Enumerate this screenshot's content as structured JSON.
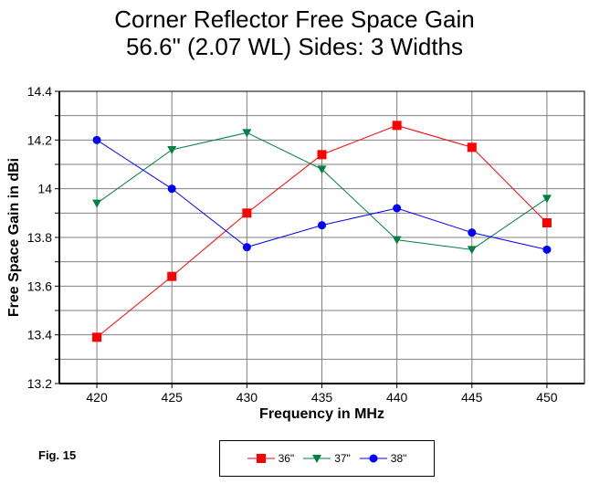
{
  "chart_data": {
    "type": "line",
    "title": "Corner Reflector Free Space Gain",
    "subtitle": "56.6\" (2.07 WL) Sides:  3 Widths",
    "xlabel": "Frequency in MHz",
    "ylabel": "Free Space Gain in dBi",
    "x": [
      420,
      425,
      430,
      435,
      440,
      445,
      450
    ],
    "xlim": [
      417.5,
      452.5
    ],
    "ylim": [
      13.2,
      14.4
    ],
    "yticks": [
      13.2,
      13.4,
      13.6,
      13.8,
      14,
      14.2,
      14.4
    ],
    "ytick_labels": [
      "13.2",
      "13.4",
      "13.6",
      "13.8",
      "14",
      "14.2",
      "14.4"
    ],
    "xtick_labels": [
      "420",
      "425",
      "430",
      "435",
      "440",
      "445",
      "450"
    ],
    "grid": true,
    "legend_position": "bottom",
    "series": [
      {
        "name": "36\"",
        "color": "#ff0000",
        "marker": "square",
        "values": [
          13.39,
          13.64,
          13.9,
          14.14,
          14.26,
          14.17,
          13.86
        ]
      },
      {
        "name": "37\"",
        "color": "#008040",
        "marker": "triangle-down",
        "values": [
          13.94,
          14.16,
          14.23,
          14.08,
          13.79,
          13.75,
          13.96
        ]
      },
      {
        "name": "38\"",
        "color": "#0000ff",
        "marker": "circle",
        "values": [
          14.2,
          14.0,
          13.76,
          13.85,
          13.92,
          13.82,
          13.75
        ]
      }
    ]
  },
  "figure_label": "Fig. 15"
}
